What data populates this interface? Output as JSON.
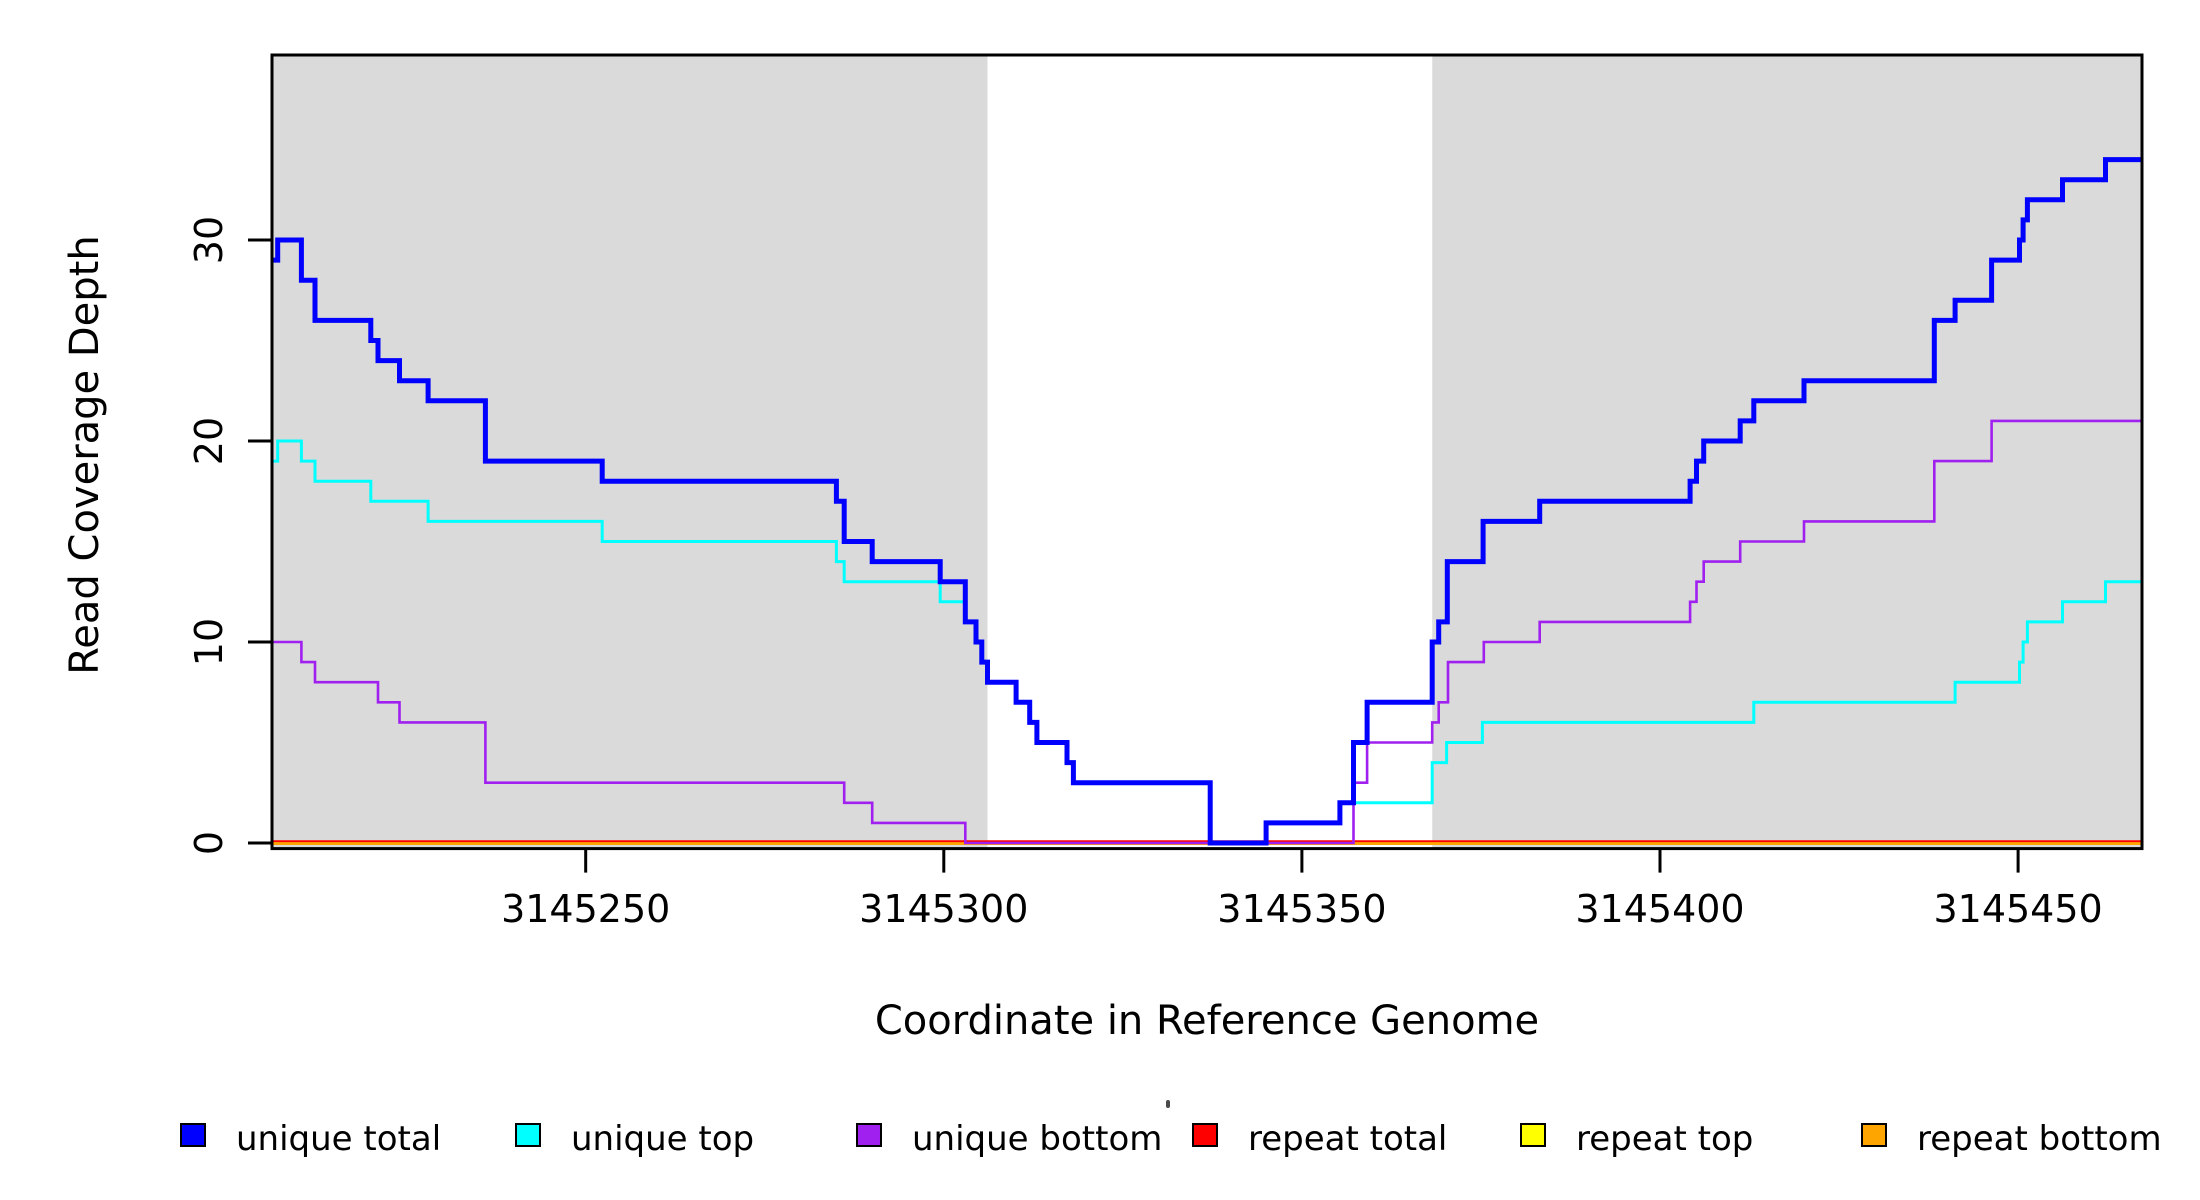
{
  "chart_data": {
    "type": "line",
    "subtype": "step-coverage-plot",
    "title": "",
    "xlabel": "Coordinate in Reference Genome",
    "ylabel": "Read Coverage Depth",
    "x_ticks": [
      3145250,
      3145300,
      3145350,
      3145400,
      3145450
    ],
    "y_ticks": [
      0,
      10,
      20,
      30
    ],
    "x_domain": [
      3145206.2,
      3145467.3
    ],
    "y_domain": [
      -0.28,
      39.3
    ],
    "grid": "off",
    "legend_position": "bottom",
    "shade_color": "#DADADA",
    "axis_color": "#000000",
    "shaded_regions": [
      [
        3145206.2,
        3145306.1
      ],
      [
        3145368.2,
        3145467.3
      ]
    ],
    "legend": [
      {
        "label": "unique total",
        "color": "#0000FF"
      },
      {
        "label": "unique top",
        "color": "#00FFFF"
      },
      {
        "label": "unique bottom",
        "color": "#A020F0"
      },
      {
        "label": "repeat total",
        "color": "#FF0000"
      },
      {
        "label": "repeat top",
        "color": "#FFFF00"
      },
      {
        "label": "repeat bottom",
        "color": "#FFA500"
      }
    ],
    "series": [
      {
        "name": "repeat top",
        "color": "#FFFF00",
        "width": 3,
        "dy": 0,
        "points": [
          [
            3145206.2,
            0
          ],
          [
            3145467.3,
            0
          ]
        ]
      },
      {
        "name": "repeat bottom",
        "color": "#FFA500",
        "width": 4,
        "dy": 0,
        "points": [
          [
            3145206.2,
            0
          ],
          [
            3145467.3,
            0
          ]
        ]
      },
      {
        "name": "repeat total",
        "color": "#FF0000",
        "width": 1.8,
        "dy": -1.8,
        "points": [
          [
            3145206.2,
            0
          ],
          [
            3145467.3,
            0
          ]
        ]
      },
      {
        "name": "unique bottom",
        "color": "#A020F0",
        "width": 2.6,
        "dy": 0,
        "points": [
          [
            3145206.2,
            10
          ],
          [
            3145210.3,
            9
          ],
          [
            3145212.2,
            8
          ],
          [
            3145221,
            7
          ],
          [
            3145224,
            6
          ],
          [
            3145236,
            3
          ],
          [
            3145286.1,
            2
          ],
          [
            3145290,
            1
          ],
          [
            3145303,
            0
          ],
          [
            3145357.2,
            3
          ],
          [
            3145359.1,
            5
          ],
          [
            3145368.2,
            6
          ],
          [
            3145369.1,
            7
          ],
          [
            3145370.4,
            9
          ],
          [
            3145375.4,
            10
          ],
          [
            3145383.2,
            11
          ],
          [
            3145404.2,
            12
          ],
          [
            3145405.1,
            13
          ],
          [
            3145406.1,
            14
          ],
          [
            3145411.2,
            15
          ],
          [
            3145420.1,
            16
          ],
          [
            3145438.3,
            19
          ],
          [
            3145446.3,
            21
          ],
          [
            3145467.3,
            21
          ]
        ]
      },
      {
        "name": "unique top",
        "color": "#00FFFF",
        "width": 3,
        "dy": 0,
        "points": [
          [
            3145206.2,
            19
          ],
          [
            3145207,
            20
          ],
          [
            3145210.3,
            19
          ],
          [
            3145212.2,
            18
          ],
          [
            3145220,
            17
          ],
          [
            3145228,
            16
          ],
          [
            3145252.3,
            15
          ],
          [
            3145285,
            14
          ],
          [
            3145286.1,
            13
          ],
          [
            3145299.5,
            12
          ],
          [
            3145303,
            11
          ],
          [
            3145304.5,
            10
          ],
          [
            3145305.3,
            9
          ],
          [
            3145306.1,
            8
          ],
          [
            3145310.1,
            7
          ],
          [
            3145312,
            6
          ],
          [
            3145313,
            5
          ],
          [
            3145317.2,
            4
          ],
          [
            3145318.1,
            3
          ],
          [
            3145337.2,
            0
          ],
          [
            3145345,
            1
          ],
          [
            3145355.3,
            2
          ],
          [
            3145368.2,
            4
          ],
          [
            3145370.2,
            5
          ],
          [
            3145375.2,
            6
          ],
          [
            3145413.1,
            7
          ],
          [
            3145441.2,
            8
          ],
          [
            3145450.2,
            9
          ],
          [
            3145450.7,
            10
          ],
          [
            3145451.3,
            11
          ],
          [
            3145456.2,
            12
          ],
          [
            3145462.2,
            13
          ],
          [
            3145467.3,
            13
          ]
        ]
      },
      {
        "name": "unique total",
        "color": "#0000FF",
        "width": 5,
        "dy": 0,
        "points": [
          [
            3145206.2,
            29
          ],
          [
            3145207,
            30
          ],
          [
            3145210.3,
            28
          ],
          [
            3145212.2,
            26
          ],
          [
            3145220,
            25
          ],
          [
            3145221,
            24
          ],
          [
            3145224,
            23
          ],
          [
            3145228,
            22
          ],
          [
            3145236,
            19
          ],
          [
            3145252.3,
            18
          ],
          [
            3145285,
            17
          ],
          [
            3145286.1,
            15
          ],
          [
            3145290,
            14
          ],
          [
            3145299.5,
            13
          ],
          [
            3145303,
            11
          ],
          [
            3145304.5,
            10
          ],
          [
            3145305.3,
            9
          ],
          [
            3145306.1,
            8
          ],
          [
            3145310.1,
            7
          ],
          [
            3145312,
            6
          ],
          [
            3145313,
            5
          ],
          [
            3145317.2,
            4
          ],
          [
            3145318.1,
            3
          ],
          [
            3145337.2,
            0
          ],
          [
            3145345,
            1
          ],
          [
            3145355.3,
            2
          ],
          [
            3145357.2,
            5
          ],
          [
            3145359.1,
            7
          ],
          [
            3145368.2,
            10
          ],
          [
            3145369.1,
            11
          ],
          [
            3145370.3,
            14
          ],
          [
            3145375.3,
            16
          ],
          [
            3145383.2,
            17
          ],
          [
            3145404.2,
            18
          ],
          [
            3145405.1,
            19
          ],
          [
            3145406.1,
            20
          ],
          [
            3145411.2,
            21
          ],
          [
            3145413.1,
            22
          ],
          [
            3145420.1,
            23
          ],
          [
            3145438.3,
            26
          ],
          [
            3145441.2,
            27
          ],
          [
            3145446.3,
            29
          ],
          [
            3145450.2,
            30
          ],
          [
            3145450.7,
            31
          ],
          [
            3145451.3,
            32
          ],
          [
            3145456.2,
            33
          ],
          [
            3145462.2,
            34
          ],
          [
            3145467.3,
            34
          ]
        ]
      }
    ]
  }
}
